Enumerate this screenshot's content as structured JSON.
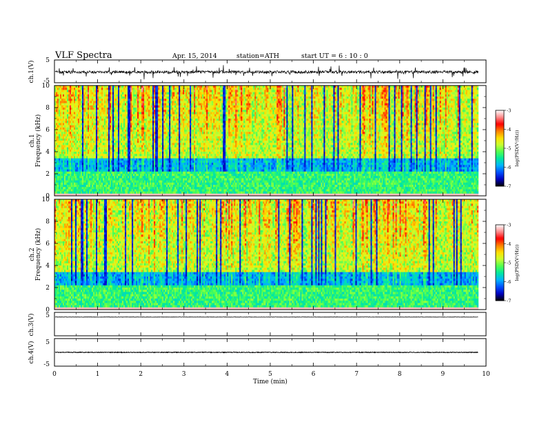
{
  "header": {
    "title": "VLF  Spectra",
    "date": "Apr. 15, 2014",
    "station": "station=ATH",
    "start": "start  UT  =   6 : 10 : 0"
  },
  "chart_data": {
    "type": "heatmap",
    "x_axis": {
      "label": "Time  (min)",
      "range": [
        0,
        10
      ],
      "ticks": [
        "0",
        "1",
        "2",
        "3",
        "4",
        "5",
        "6",
        "7",
        "8",
        "9",
        "10"
      ],
      "data_extent_min": 9.82
    },
    "panels": [
      {
        "id": "ch1-waveform",
        "type": "line",
        "ylabel": "ch.1(V)",
        "ylim": [
          -5,
          5
        ],
        "yticks": [
          "5",
          "-5"
        ],
        "baseline": -0.3,
        "amplitude": 1.2
      },
      {
        "id": "ch1-spectrogram",
        "type": "heatmap",
        "ylabel_top": "ch.1",
        "ylabel": "Frequency  (kHz)",
        "ylim": [
          0,
          10
        ],
        "yticks": [
          "0",
          "2",
          "4",
          "6",
          "8",
          "10"
        ],
        "colorbar": {
          "label": "log(PSD(V²/Hz))",
          "range": [
            -7,
            -3
          ],
          "ticks": [
            "-3",
            "-4",
            "-5",
            "-6",
            "-7"
          ],
          "colors": [
            "#000000",
            "#0000c0",
            "#0050ff",
            "#00b4ff",
            "#00e8a0",
            "#50ff50",
            "#c8ff30",
            "#ffe000",
            "#ff8000",
            "#ff0000",
            "#ff8c8c",
            "#ffffff"
          ]
        }
      },
      {
        "id": "ch2-spectrogram",
        "type": "heatmap",
        "ylabel_top": "ch.2",
        "ylabel": "Frequency  (kHz)",
        "ylim": [
          0,
          10
        ],
        "yticks": [
          "0",
          "2",
          "4",
          "6",
          "8",
          "10"
        ],
        "colorbar": {
          "label": "log(PSD(V²/Hz))",
          "range": [
            -7,
            -3
          ],
          "ticks": [
            "-3",
            "-4",
            "-5",
            "-6",
            "-7"
          ],
          "colors": [
            "#000000",
            "#0000c0",
            "#0050ff",
            "#00b4ff",
            "#00e8a0",
            "#50ff50",
            "#c8ff30",
            "#ffe000",
            "#ff8000",
            "#ff0000",
            "#ff8c8c",
            "#ffffff"
          ]
        }
      },
      {
        "id": "ch3-waveform",
        "type": "line",
        "ylabel": "ch.3(V)",
        "ylim": [
          -5,
          5
        ],
        "yticks": [
          "5"
        ],
        "baseline": 3.0,
        "amplitude": 0.15
      },
      {
        "id": "ch4-waveform",
        "type": "line",
        "ylabel": "ch.4(V)",
        "ylim": [
          -5,
          5
        ],
        "yticks": [
          "5",
          "-5"
        ],
        "baseline": 0.0,
        "amplitude": 0.25
      }
    ]
  }
}
